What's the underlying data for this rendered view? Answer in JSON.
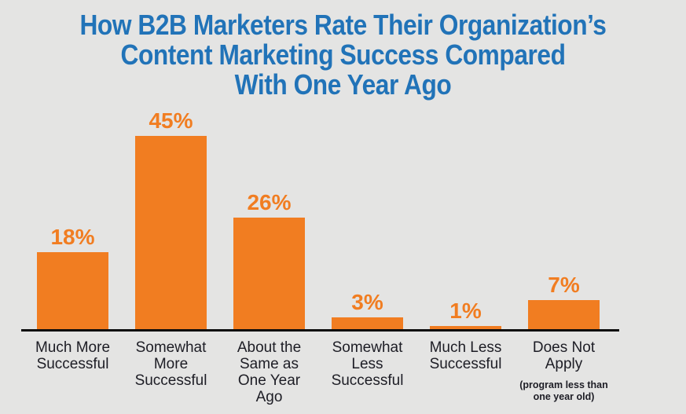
{
  "page": {
    "background_color": "#e4e4e3"
  },
  "chart_data": {
    "type": "bar",
    "title": "How B2B Marketers Rate Their Organization’s Content Marketing Success Compared With One Year Ago",
    "title_lines": [
      "How B2B Marketers Rate Their Organization’s",
      "Content Marketing Success Compared",
      "With One Year Ago"
    ],
    "categories": [
      "Much More Successful",
      "Somewhat More Successful",
      "About the Same as One Year Ago",
      "Somewhat Less Successful",
      "Much Less Successful",
      "Does Not Apply"
    ],
    "category_lines": [
      [
        "Much More",
        "Successful"
      ],
      [
        "Somewhat",
        "More",
        "Successful"
      ],
      [
        "About the",
        "Same as",
        "One Year",
        "Ago"
      ],
      [
        "Somewhat",
        "Less",
        "Successful"
      ],
      [
        "Much Less",
        "Successful"
      ],
      [
        "Does Not",
        "Apply"
      ]
    ],
    "values": [
      18,
      45,
      26,
      3,
      1,
      7
    ],
    "value_labels": [
      "18%",
      "45%",
      "26%",
      "3%",
      "1%",
      "7%"
    ],
    "value_suffix": "%",
    "footnote_category_index": 5,
    "footnote": "(program less than one year old)",
    "footnote_lines": [
      "(program less than",
      "one year old)"
    ],
    "ylim": [
      0,
      50
    ],
    "grid": false,
    "legend": false,
    "bar_color": "#f17d21",
    "title_color": "#2173b8",
    "label_color": "#1d1d25",
    "axis_color": "#0d0d0d",
    "background_color": "#e4e4e3"
  }
}
